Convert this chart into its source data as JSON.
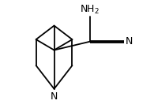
{
  "background": "#ffffff",
  "line_color": "#000000",
  "lw": 1.3,
  "figsize": [
    1.95,
    1.37
  ],
  "dpi": 100,
  "n_fontsize": 9.0,
  "nh2_fontsize": 9.0
}
